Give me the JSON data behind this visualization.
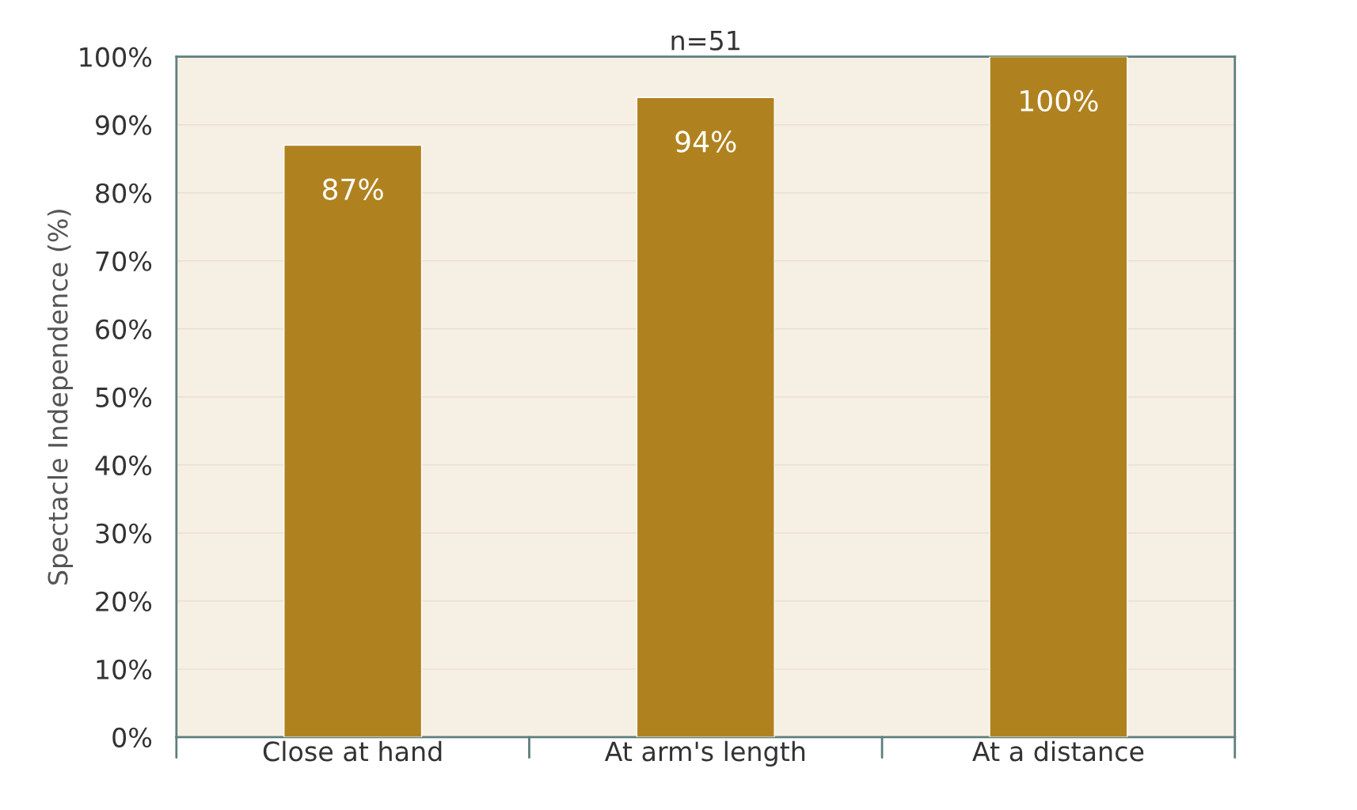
{
  "chart_data": {
    "type": "bar",
    "title": "n=51",
    "ylabel": "Spectacle Independence (%)",
    "categories": [
      "Close at hand",
      "At arm's length",
      "At a distance"
    ],
    "values": [
      87,
      94,
      100
    ],
    "color": "#b0821f",
    "value_labels": [
      "87%",
      "94%",
      "100%"
    ],
    "ylim": [
      0,
      100
    ],
    "yticks": [
      {
        "value": 0,
        "label": "0%"
      },
      {
        "value": 10,
        "label": "10%"
      },
      {
        "value": 20,
        "label": "20%"
      },
      {
        "value": 30,
        "label": "30%"
      },
      {
        "value": 40,
        "label": "40%"
      },
      {
        "value": 50,
        "label": "50%"
      },
      {
        "value": 60,
        "label": "60%"
      },
      {
        "value": 70,
        "label": "70%"
      },
      {
        "value": 80,
        "label": "80%"
      },
      {
        "value": 90,
        "label": "90%"
      },
      {
        "value": 100,
        "label": "100%"
      }
    ],
    "grid": "y",
    "legend": false
  }
}
